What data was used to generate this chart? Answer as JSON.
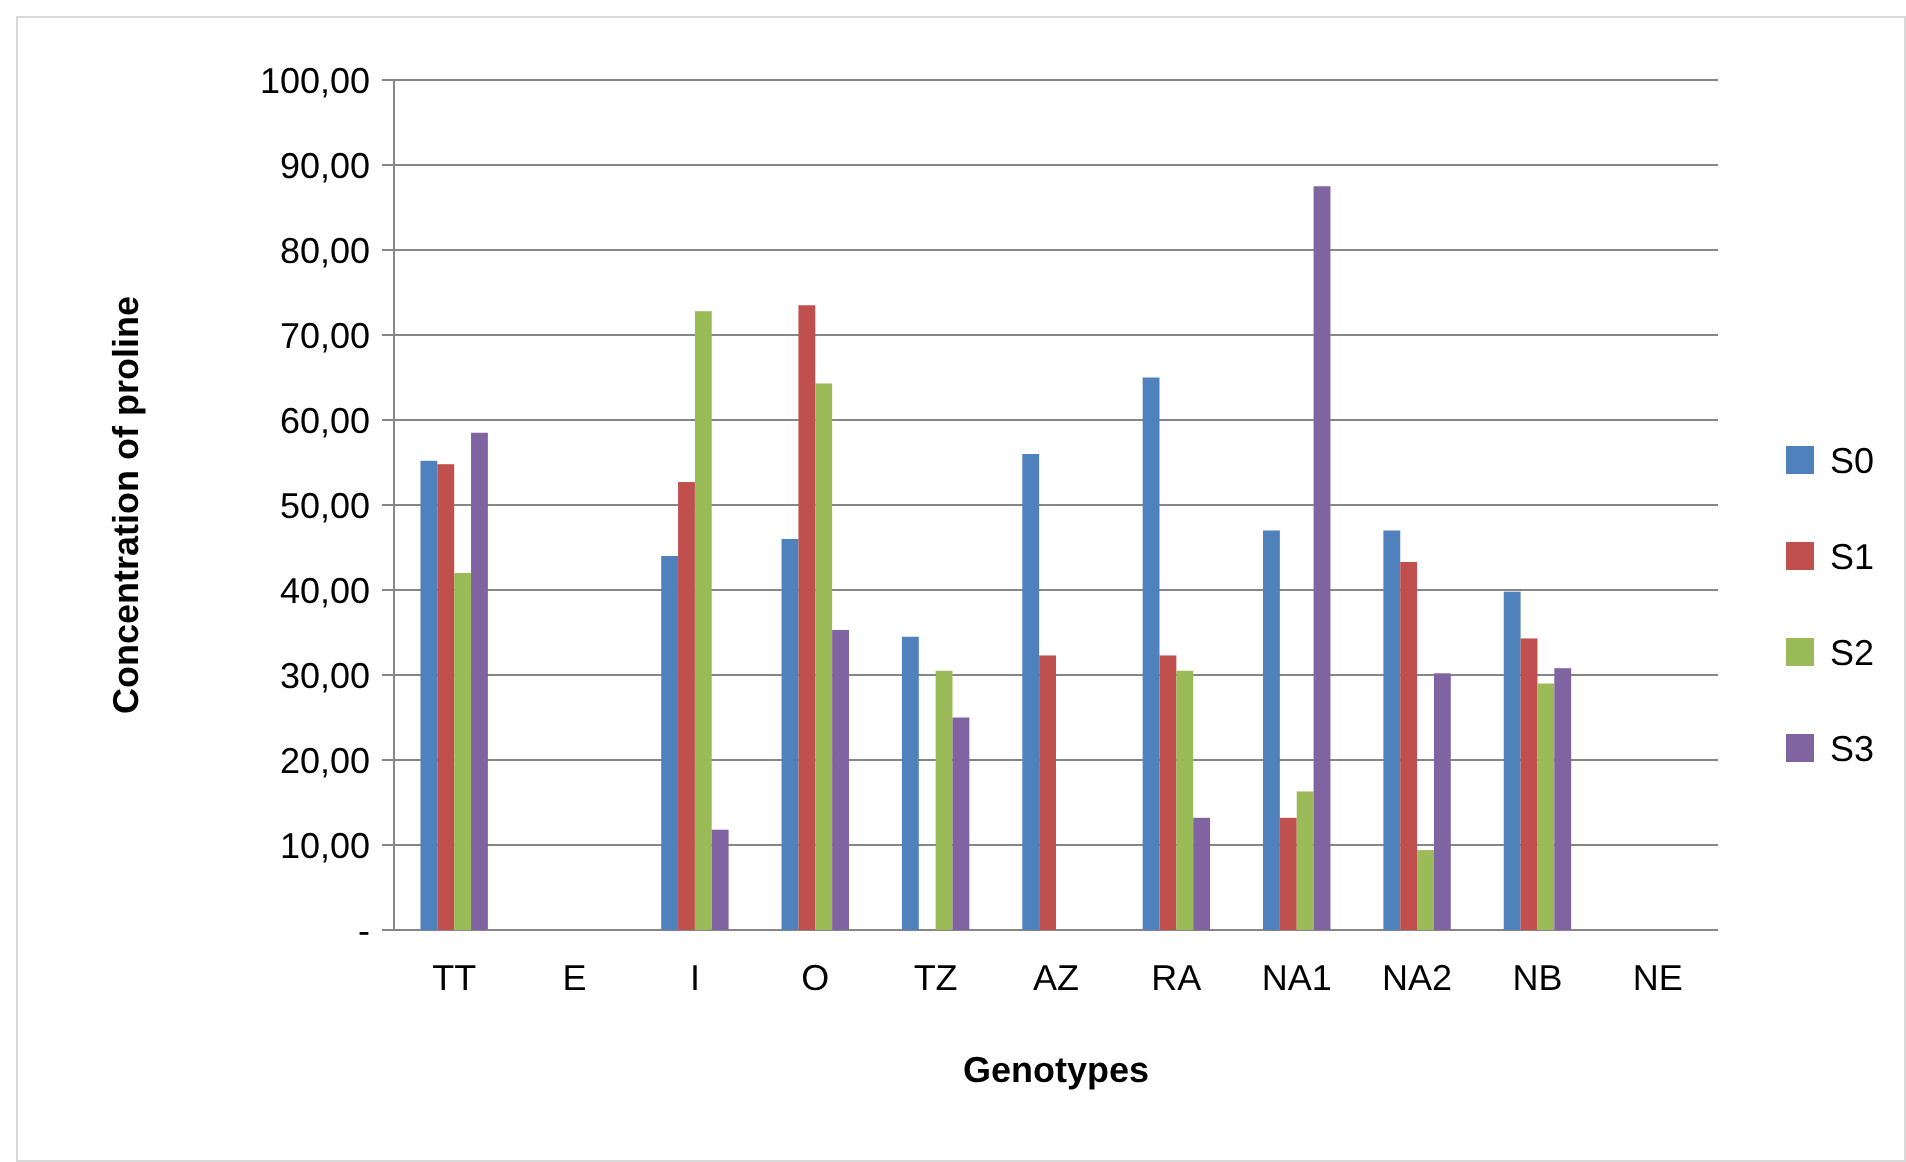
{
  "chart_data": {
    "type": "bar",
    "xlabel": "Genotypes",
    "ylabel": "Concentration of proline",
    "categories": [
      "TT",
      "E",
      "I",
      "O",
      "TZ",
      "AZ",
      "RA",
      "NA1",
      "NA2",
      "NB",
      "NE"
    ],
    "series": [
      {
        "name": "S0",
        "color": "#4f81bd",
        "values": [
          55.2,
          null,
          44,
          46,
          34.5,
          56,
          65,
          47,
          47,
          39.8,
          null
        ]
      },
      {
        "name": "S1",
        "color": "#c0504d",
        "values": [
          54.8,
          null,
          52.7,
          73.5,
          null,
          32.3,
          32.3,
          13.2,
          43.3,
          34.3,
          null
        ]
      },
      {
        "name": "S2",
        "color": "#9bbb59",
        "values": [
          42,
          null,
          72.8,
          64.3,
          30.5,
          null,
          30.5,
          16.3,
          9.4,
          29,
          null
        ]
      },
      {
        "name": "S3",
        "color": "#8064a2",
        "values": [
          58.5,
          null,
          11.8,
          35.3,
          25,
          null,
          13.2,
          87.5,
          30.2,
          30.8,
          null
        ]
      }
    ],
    "ylim": [
      0,
      100
    ],
    "yticks": [
      {
        "value": 0,
        "label": "-"
      },
      {
        "value": 10,
        "label": "10,00"
      },
      {
        "value": 20,
        "label": "20,00"
      },
      {
        "value": 30,
        "label": "30,00"
      },
      {
        "value": 40,
        "label": "40,00"
      },
      {
        "value": 50,
        "label": "50,00"
      },
      {
        "value": 60,
        "label": "60,00"
      },
      {
        "value": 70,
        "label": "70,00"
      },
      {
        "value": 80,
        "label": "80,00"
      },
      {
        "value": 90,
        "label": "90,00"
      },
      {
        "value": 100,
        "label": "100,00"
      }
    ],
    "grid": "y",
    "legend": "right"
  }
}
